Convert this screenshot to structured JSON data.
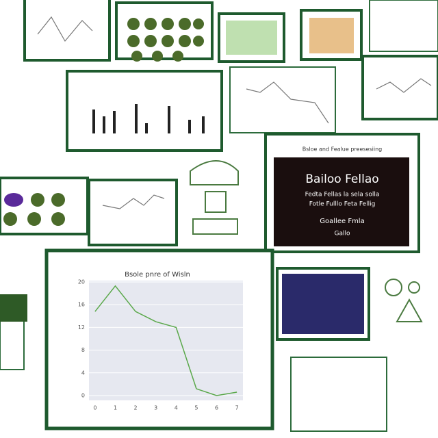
{
  "black_panel": {
    "header": "Bsloe and Fealue preesesiing",
    "lines": [
      "Bailoo Fellao",
      "Fedta Fellas la sela solla",
      "Fotle Fulllo Feta Fellig",
      "Goallee Fmla",
      "Gallo"
    ]
  },
  "main_chart": {
    "type": "line",
    "title": "Bsole pnre of Wisln",
    "x": [
      0,
      1,
      2,
      3,
      4,
      5,
      6,
      7
    ],
    "values": [
      14.8,
      19.3,
      14.8,
      13,
      12,
      1.2,
      0,
      0.6
    ],
    "color": "#5aa84a",
    "ylim": [
      0,
      20
    ],
    "yticks": [
      0,
      4,
      8,
      12,
      16,
      20
    ],
    "xlim": [
      -0.3,
      7.3
    ],
    "xticks": [
      0,
      1,
      2,
      3,
      4,
      5,
      6,
      7
    ]
  }
}
